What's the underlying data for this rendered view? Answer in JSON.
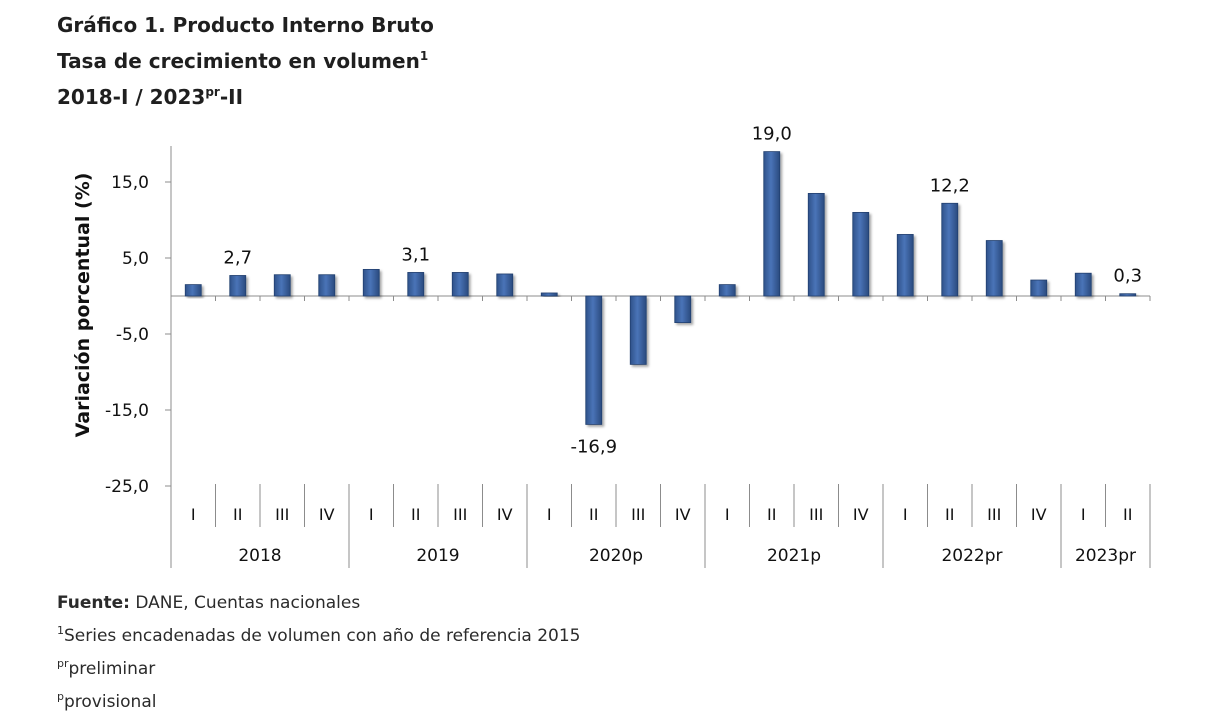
{
  "title": {
    "line1": "Gráfico 1. Producto Interno Bruto",
    "line2": "Tasa de crecimiento en volumen",
    "line2_sup": "1",
    "line3_pre": "2018-I / 2023",
    "line3_sup": "pr",
    "line3_post": "-II"
  },
  "chart_data": {
    "type": "bar",
    "ylabel": "Variación porcentual (%)",
    "ylim": [
      -25,
      20
    ],
    "yticks": [
      "15,0",
      "5,0",
      "-5,0",
      "-15,0",
      "-25,0"
    ],
    "ytick_values": [
      15,
      5,
      -5,
      -15,
      -25
    ],
    "grid": false,
    "bar_color": "#3a62a0",
    "categories": [
      "I",
      "II",
      "III",
      "IV",
      "I",
      "II",
      "III",
      "IV",
      "I",
      "II",
      "III",
      "IV",
      "I",
      "II",
      "III",
      "IV",
      "I",
      "II",
      "III",
      "IV",
      "I",
      "II"
    ],
    "groups": [
      {
        "label": "2018",
        "count": 4
      },
      {
        "label": "2019",
        "count": 4
      },
      {
        "label": "2020p",
        "count": 4
      },
      {
        "label": "2021p",
        "count": 4
      },
      {
        "label": "2022pr",
        "count": 4
      },
      {
        "label": "2023pr",
        "count": 2
      }
    ],
    "values": [
      1.5,
      2.7,
      2.8,
      2.8,
      3.5,
      3.1,
      3.1,
      2.9,
      0.4,
      -16.9,
      -9.0,
      -3.5,
      1.5,
      19.0,
      13.5,
      11.0,
      8.1,
      12.2,
      7.3,
      2.1,
      3.0,
      0.3
    ],
    "data_labels": [
      {
        "index": 1,
        "text": "2,7"
      },
      {
        "index": 5,
        "text": "3,1"
      },
      {
        "index": 9,
        "text": "-16,9"
      },
      {
        "index": 13,
        "text": "19,0"
      },
      {
        "index": 17,
        "text": "12,2"
      },
      {
        "index": 21,
        "text": "0,3"
      }
    ]
  },
  "footer": {
    "source_label": "Fuente:",
    "source_text": " DANE, Cuentas nacionales",
    "note1_sup": "1",
    "note1_text": "Series encadenadas de volumen con año de referencia 2015",
    "note2_sup": "pr",
    "note2_text": "preliminar",
    "note3_sup": "p",
    "note3_text": "provisional"
  }
}
